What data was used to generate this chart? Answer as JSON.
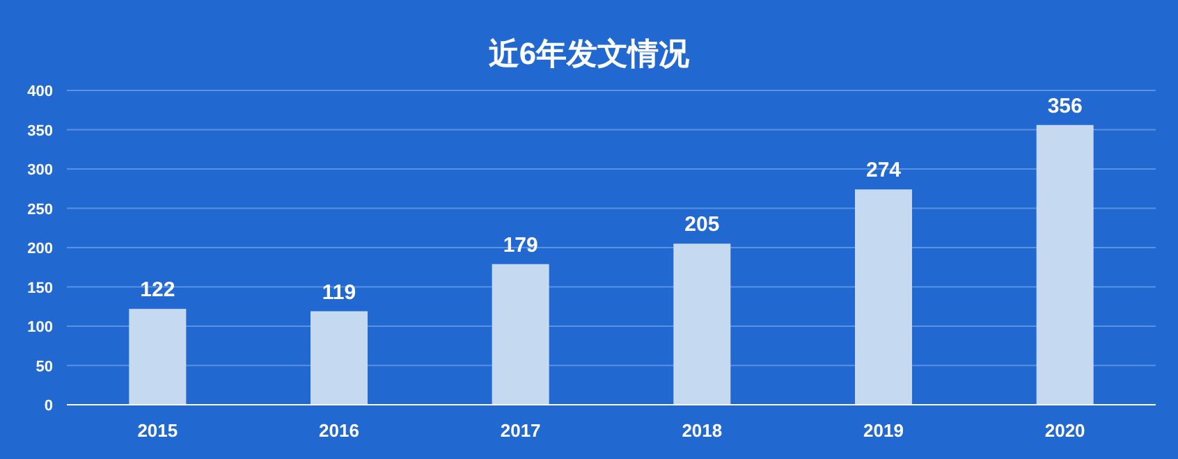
{
  "chart_data": {
    "type": "bar",
    "title": "近6年发文情况",
    "categories": [
      "2015",
      "2016",
      "2017",
      "2018",
      "2019",
      "2020"
    ],
    "values": [
      122,
      119,
      179,
      205,
      274,
      356
    ],
    "color": "#c5d9f1",
    "ylim": [
      0,
      400
    ],
    "yticks": [
      0,
      50,
      100,
      150,
      200,
      250,
      300,
      350,
      400
    ],
    "grid": "y",
    "data_labels": true
  }
}
